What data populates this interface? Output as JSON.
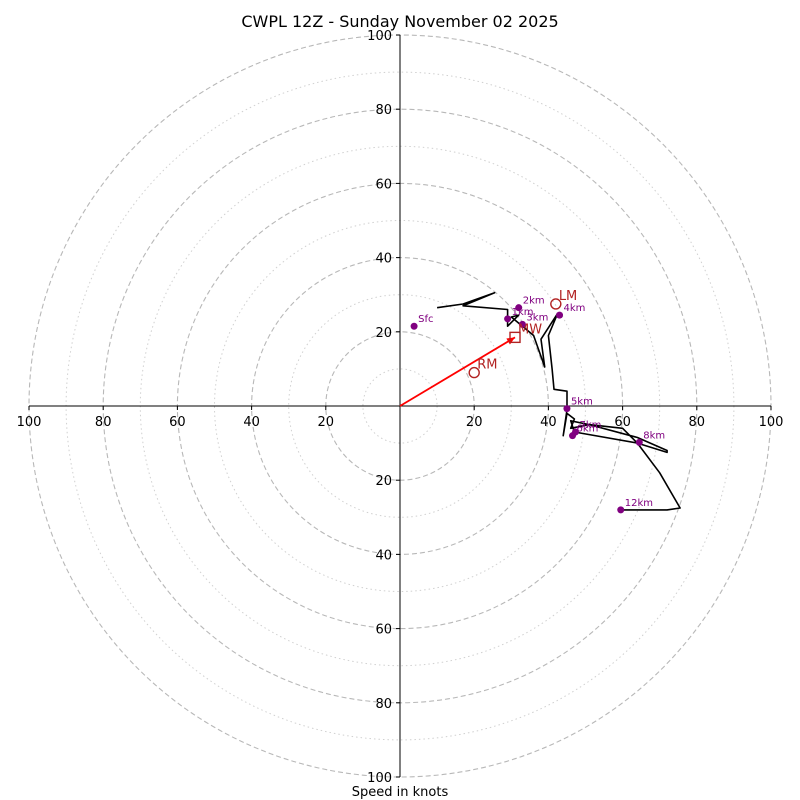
{
  "chart_data": {
    "type": "hodograph",
    "title": "CWPL 12Z - Sunday November 02 2025",
    "xlabel": "Speed in knots",
    "axis_range": [
      -100,
      100
    ],
    "major_rings": [
      20,
      40,
      60,
      80,
      100
    ],
    "minor_rings": [
      10,
      30,
      50,
      70,
      90
    ],
    "x_ticks": [
      {
        "value": -100,
        "label": "100"
      },
      {
        "value": -80,
        "label": "80"
      },
      {
        "value": -60,
        "label": "60"
      },
      {
        "value": -40,
        "label": "40"
      },
      {
        "value": -20,
        "label": "20"
      },
      {
        "value": 20,
        "label": "20"
      },
      {
        "value": 40,
        "label": "40"
      },
      {
        "value": 60,
        "label": "60"
      },
      {
        "value": 80,
        "label": "80"
      },
      {
        "value": 100,
        "label": "100"
      }
    ],
    "y_ticks": [
      {
        "value": 100,
        "label": "100"
      },
      {
        "value": 80,
        "label": "80"
      },
      {
        "value": 60,
        "label": "60"
      },
      {
        "value": 40,
        "label": "40"
      },
      {
        "value": 20,
        "label": "20"
      },
      {
        "value": -20,
        "label": "20"
      },
      {
        "value": -40,
        "label": "40"
      },
      {
        "value": -60,
        "label": "60"
      },
      {
        "value": -80,
        "label": "80"
      },
      {
        "value": -100,
        "label": "100"
      }
    ],
    "hodograph_trace": [
      [
        10,
        26.5
      ],
      [
        17,
        27.5
      ],
      [
        25.5,
        30.5
      ],
      [
        17,
        27
      ],
      [
        29,
        26
      ],
      [
        29,
        21.5
      ],
      [
        32,
        24.5
      ],
      [
        30,
        24
      ],
      [
        36,
        19
      ],
      [
        38.5,
        12
      ],
      [
        39,
        10.5
      ],
      [
        38,
        18
      ],
      [
        42.5,
        25
      ],
      [
        40,
        19
      ],
      [
        41,
        10
      ],
      [
        41.5,
        4.5
      ],
      [
        45,
        4
      ],
      [
        45,
        -1
      ],
      [
        44,
        -8
      ],
      [
        45,
        -2
      ],
      [
        47,
        -3.5
      ],
      [
        46,
        -6
      ],
      [
        51,
        -5
      ],
      [
        60,
        -6
      ],
      [
        64,
        -10
      ],
      [
        72,
        -12.5
      ],
      [
        72,
        -12
      ],
      [
        64,
        -8.5
      ],
      [
        51,
        -5
      ],
      [
        46,
        -4
      ],
      [
        47,
        -7
      ],
      [
        64,
        -10
      ],
      [
        70,
        -18
      ],
      [
        75.5,
        -27.5
      ],
      [
        72,
        -28
      ],
      [
        60,
        -28
      ]
    ],
    "height_markers": [
      {
        "label": "Sfc",
        "u": 3.8,
        "v": 21.5
      },
      {
        "label": "1km",
        "u": 29,
        "v": 23.5
      },
      {
        "label": "2km",
        "u": 32,
        "v": 26.5
      },
      {
        "label": "3km",
        "u": 33,
        "v": 22
      },
      {
        "label": "4km",
        "u": 43,
        "v": 24.5
      },
      {
        "label": "5km",
        "u": 45,
        "v": -0.7
      },
      {
        "label": "6km",
        "u": 46.5,
        "v": -8
      },
      {
        "label": "7km",
        "u": 47.3,
        "v": -7
      },
      {
        "label": "8km",
        "u": 64.5,
        "v": -9.8
      },
      {
        "label": "12km",
        "u": 59.5,
        "v": -28
      }
    ],
    "storm_motions": [
      {
        "label": "LM",
        "u": 42,
        "v": 27.5,
        "marker": "circle"
      },
      {
        "label": "MW",
        "u": 31,
        "v": 18.5,
        "marker": "square"
      },
      {
        "label": "RM",
        "u": 20,
        "v": 9,
        "marker": "circle"
      }
    ],
    "shear_vector": {
      "from": [
        0,
        0
      ],
      "to": [
        31,
        18.5
      ]
    },
    "colors": {
      "trace": "#000000",
      "height_marker": "#800080",
      "storm_motion": "#b22222",
      "shear_vector": "#ff0000",
      "rings": "#b8b8b8",
      "axes": "#000000"
    }
  }
}
